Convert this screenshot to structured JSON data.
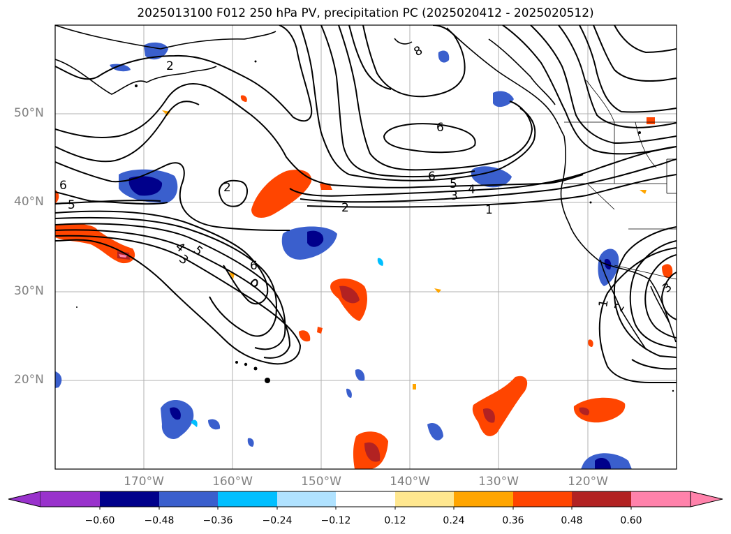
{
  "title": "2025013100 F012 250 hPa PV, precipitation PC (2025020412 - 2025020512)",
  "map": {
    "lat_labels": [
      {
        "label": "50°N",
        "lat": 50
      },
      {
        "label": "40°N",
        "lat": 40
      },
      {
        "label": "30°N",
        "lat": 30
      },
      {
        "label": "20°N",
        "lat": 20
      }
    ],
    "lon_labels": [
      {
        "label": "170°W",
        "lon": -170
      },
      {
        "label": "160°W",
        "lon": -160
      },
      {
        "label": "150°W",
        "lon": -150
      },
      {
        "label": "140°W",
        "lon": -140
      },
      {
        "label": "130°W",
        "lon": -130
      },
      {
        "label": "120°W",
        "lon": -120
      }
    ],
    "extent": {
      "lon_min": -180,
      "lon_max": -110,
      "lat_min": 10,
      "lat_max": 60
    },
    "pv_contour_labels": [
      "2",
      "8",
      "6",
      "6",
      "5",
      "4",
      "3",
      "2",
      "1",
      "6",
      "5",
      "2",
      "4",
      "3",
      "5",
      "6",
      "1",
      "2",
      "3"
    ]
  },
  "colorbar": {
    "ticks": [
      "−0.60",
      "−0.48",
      "−0.36",
      "−0.24",
      "−0.12",
      "0.12",
      "0.24",
      "0.36",
      "0.48",
      "0.60"
    ],
    "colors": [
      "#9932cc",
      "#00008b",
      "#3a5fcd",
      "#00bfff",
      "#b0e2ff",
      "#ffffff",
      "#ffe78f",
      "#ffa500",
      "#ff4500",
      "#b22222",
      "#ff82ab"
    ]
  }
}
